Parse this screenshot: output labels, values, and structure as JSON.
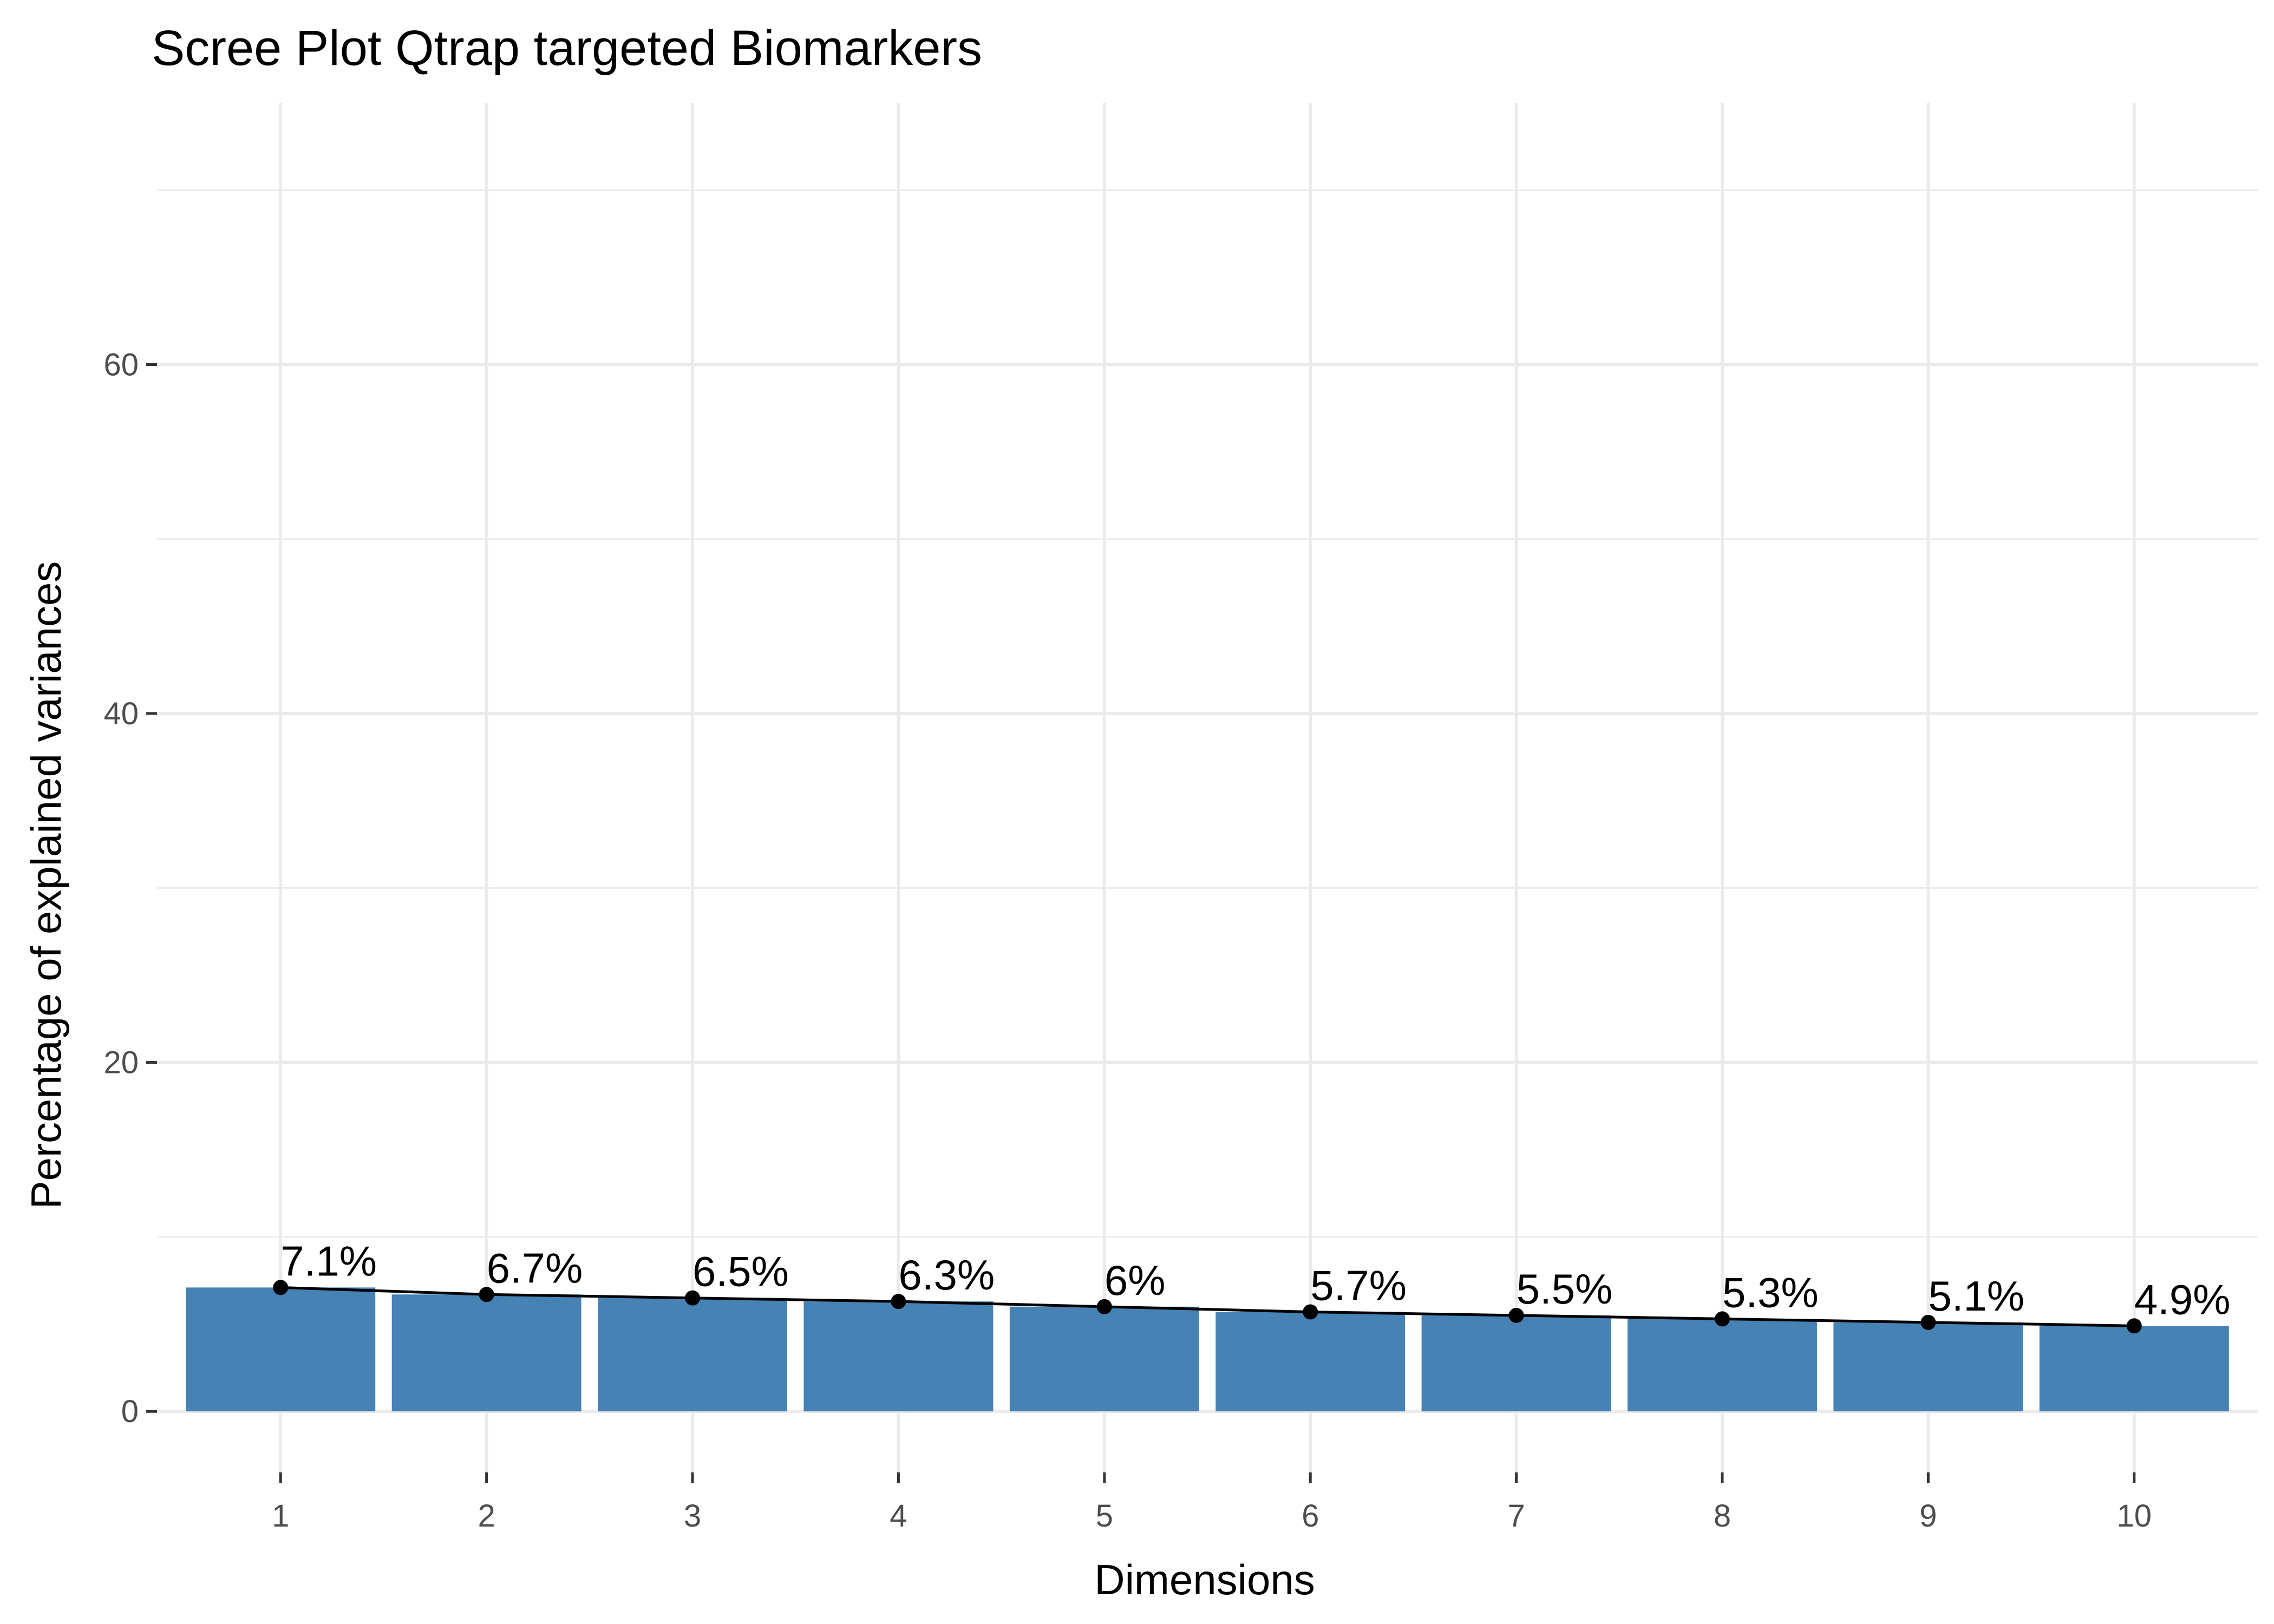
{
  "chart_data": {
    "type": "bar",
    "title": "Scree Plot Qtrap targeted Biomarkers",
    "xlabel": "Dimensions",
    "ylabel": "Percentage of explained variances",
    "categories": [
      "1",
      "2",
      "3",
      "4",
      "5",
      "6",
      "7",
      "8",
      "9",
      "10"
    ],
    "values": [
      7.1,
      6.7,
      6.5,
      6.3,
      6.0,
      5.7,
      5.5,
      5.3,
      5.1,
      4.9
    ],
    "labels": [
      "7.1%",
      "6.7%",
      "6.5%",
      "6.3%",
      "6%",
      "5.7%",
      "5.5%",
      "5.3%",
      "5.1%",
      "4.9%"
    ],
    "y_ticks": [
      "0",
      "20",
      "40",
      "60"
    ],
    "ylim": [
      -3.5,
      75
    ],
    "grid": true,
    "line_overlay": true,
    "colors": {
      "bar": "#4682b4",
      "line": "#000000",
      "grid": "#ebebeb"
    }
  }
}
